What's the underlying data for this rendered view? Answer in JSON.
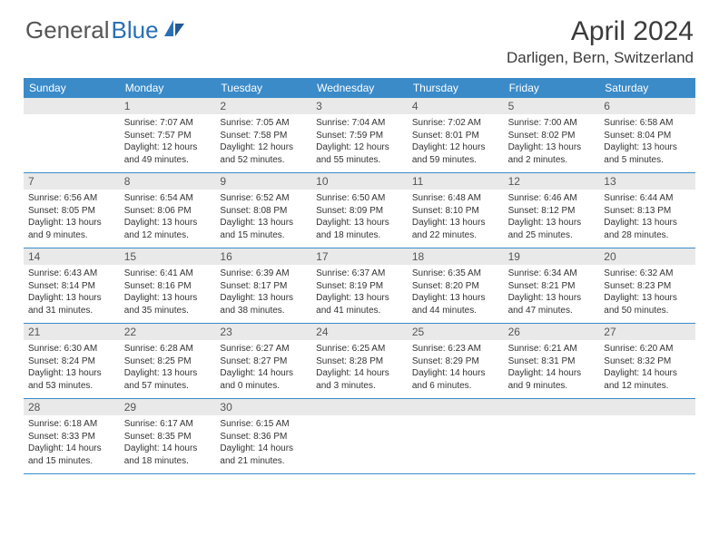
{
  "logo": {
    "text1": "General",
    "text2": "Blue"
  },
  "title": "April 2024",
  "location": "Darligen, Bern, Switzerland",
  "weekday_bg": "#3b8bc9",
  "daynum_bg": "#e9e9e9",
  "weekdays": [
    "Sunday",
    "Monday",
    "Tuesday",
    "Wednesday",
    "Thursday",
    "Friday",
    "Saturday"
  ],
  "weeks": [
    [
      {
        "n": "",
        "sr": "",
        "ss": "",
        "dl": ""
      },
      {
        "n": "1",
        "sr": "Sunrise: 7:07 AM",
        "ss": "Sunset: 7:57 PM",
        "dl": "Daylight: 12 hours and 49 minutes."
      },
      {
        "n": "2",
        "sr": "Sunrise: 7:05 AM",
        "ss": "Sunset: 7:58 PM",
        "dl": "Daylight: 12 hours and 52 minutes."
      },
      {
        "n": "3",
        "sr": "Sunrise: 7:04 AM",
        "ss": "Sunset: 7:59 PM",
        "dl": "Daylight: 12 hours and 55 minutes."
      },
      {
        "n": "4",
        "sr": "Sunrise: 7:02 AM",
        "ss": "Sunset: 8:01 PM",
        "dl": "Daylight: 12 hours and 59 minutes."
      },
      {
        "n": "5",
        "sr": "Sunrise: 7:00 AM",
        "ss": "Sunset: 8:02 PM",
        "dl": "Daylight: 13 hours and 2 minutes."
      },
      {
        "n": "6",
        "sr": "Sunrise: 6:58 AM",
        "ss": "Sunset: 8:04 PM",
        "dl": "Daylight: 13 hours and 5 minutes."
      }
    ],
    [
      {
        "n": "7",
        "sr": "Sunrise: 6:56 AM",
        "ss": "Sunset: 8:05 PM",
        "dl": "Daylight: 13 hours and 9 minutes."
      },
      {
        "n": "8",
        "sr": "Sunrise: 6:54 AM",
        "ss": "Sunset: 8:06 PM",
        "dl": "Daylight: 13 hours and 12 minutes."
      },
      {
        "n": "9",
        "sr": "Sunrise: 6:52 AM",
        "ss": "Sunset: 8:08 PM",
        "dl": "Daylight: 13 hours and 15 minutes."
      },
      {
        "n": "10",
        "sr": "Sunrise: 6:50 AM",
        "ss": "Sunset: 8:09 PM",
        "dl": "Daylight: 13 hours and 18 minutes."
      },
      {
        "n": "11",
        "sr": "Sunrise: 6:48 AM",
        "ss": "Sunset: 8:10 PM",
        "dl": "Daylight: 13 hours and 22 minutes."
      },
      {
        "n": "12",
        "sr": "Sunrise: 6:46 AM",
        "ss": "Sunset: 8:12 PM",
        "dl": "Daylight: 13 hours and 25 minutes."
      },
      {
        "n": "13",
        "sr": "Sunrise: 6:44 AM",
        "ss": "Sunset: 8:13 PM",
        "dl": "Daylight: 13 hours and 28 minutes."
      }
    ],
    [
      {
        "n": "14",
        "sr": "Sunrise: 6:43 AM",
        "ss": "Sunset: 8:14 PM",
        "dl": "Daylight: 13 hours and 31 minutes."
      },
      {
        "n": "15",
        "sr": "Sunrise: 6:41 AM",
        "ss": "Sunset: 8:16 PM",
        "dl": "Daylight: 13 hours and 35 minutes."
      },
      {
        "n": "16",
        "sr": "Sunrise: 6:39 AM",
        "ss": "Sunset: 8:17 PM",
        "dl": "Daylight: 13 hours and 38 minutes."
      },
      {
        "n": "17",
        "sr": "Sunrise: 6:37 AM",
        "ss": "Sunset: 8:19 PM",
        "dl": "Daylight: 13 hours and 41 minutes."
      },
      {
        "n": "18",
        "sr": "Sunrise: 6:35 AM",
        "ss": "Sunset: 8:20 PM",
        "dl": "Daylight: 13 hours and 44 minutes."
      },
      {
        "n": "19",
        "sr": "Sunrise: 6:34 AM",
        "ss": "Sunset: 8:21 PM",
        "dl": "Daylight: 13 hours and 47 minutes."
      },
      {
        "n": "20",
        "sr": "Sunrise: 6:32 AM",
        "ss": "Sunset: 8:23 PM",
        "dl": "Daylight: 13 hours and 50 minutes."
      }
    ],
    [
      {
        "n": "21",
        "sr": "Sunrise: 6:30 AM",
        "ss": "Sunset: 8:24 PM",
        "dl": "Daylight: 13 hours and 53 minutes."
      },
      {
        "n": "22",
        "sr": "Sunrise: 6:28 AM",
        "ss": "Sunset: 8:25 PM",
        "dl": "Daylight: 13 hours and 57 minutes."
      },
      {
        "n": "23",
        "sr": "Sunrise: 6:27 AM",
        "ss": "Sunset: 8:27 PM",
        "dl": "Daylight: 14 hours and 0 minutes."
      },
      {
        "n": "24",
        "sr": "Sunrise: 6:25 AM",
        "ss": "Sunset: 8:28 PM",
        "dl": "Daylight: 14 hours and 3 minutes."
      },
      {
        "n": "25",
        "sr": "Sunrise: 6:23 AM",
        "ss": "Sunset: 8:29 PM",
        "dl": "Daylight: 14 hours and 6 minutes."
      },
      {
        "n": "26",
        "sr": "Sunrise: 6:21 AM",
        "ss": "Sunset: 8:31 PM",
        "dl": "Daylight: 14 hours and 9 minutes."
      },
      {
        "n": "27",
        "sr": "Sunrise: 6:20 AM",
        "ss": "Sunset: 8:32 PM",
        "dl": "Daylight: 14 hours and 12 minutes."
      }
    ],
    [
      {
        "n": "28",
        "sr": "Sunrise: 6:18 AM",
        "ss": "Sunset: 8:33 PM",
        "dl": "Daylight: 14 hours and 15 minutes."
      },
      {
        "n": "29",
        "sr": "Sunrise: 6:17 AM",
        "ss": "Sunset: 8:35 PM",
        "dl": "Daylight: 14 hours and 18 minutes."
      },
      {
        "n": "30",
        "sr": "Sunrise: 6:15 AM",
        "ss": "Sunset: 8:36 PM",
        "dl": "Daylight: 14 hours and 21 minutes."
      },
      {
        "n": "",
        "sr": "",
        "ss": "",
        "dl": ""
      },
      {
        "n": "",
        "sr": "",
        "ss": "",
        "dl": ""
      },
      {
        "n": "",
        "sr": "",
        "ss": "",
        "dl": ""
      },
      {
        "n": "",
        "sr": "",
        "ss": "",
        "dl": ""
      }
    ]
  ]
}
